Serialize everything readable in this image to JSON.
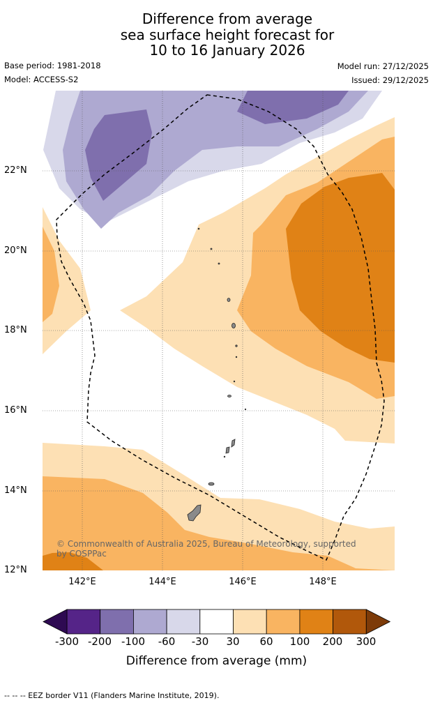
{
  "title": {
    "line1": "Difference from average",
    "line2": "sea surface height forecast for",
    "line3": "10 to 16 January 2026"
  },
  "info": {
    "base_period": "Base period: 1981-2018",
    "model": "Model: ACCESS-S2",
    "model_run": "Model run: 27/12/2025",
    "issued": "Issued: 29/12/2025"
  },
  "map": {
    "lat_labels": [
      "22°N",
      "20°N",
      "18°N",
      "16°N",
      "14°N",
      "12°N"
    ],
    "lon_labels": [
      "142°E",
      "144°E",
      "146°E",
      "148°E"
    ],
    "credit": "© Commonwealth of Australia 2025, Bureau of Meteorology, supported by COSPPac"
  },
  "legend": {
    "ticks": [
      "-300",
      "-200",
      "-100",
      "-60",
      "-30",
      "30",
      "60",
      "100",
      "200",
      "300"
    ],
    "colors": {
      "below_-300": "#2e0a52",
      "-300_-200": "#552488",
      "-200_-100": "#7f6fad",
      "-100_-60": "#aea9d1",
      "-60_-30": "#d8d8ea",
      "-30_30": "#ffffff",
      "30_60": "#fde0b4",
      "60_100": "#f9b461",
      "100_200": "#e08216",
      "200_300": "#b1580b",
      "above_300": "#7d3b09"
    },
    "label": "Difference from average (mm)"
  },
  "footnote": "--  --  -- EEZ border V11 (Flanders Marine Institute, 2019)."
}
